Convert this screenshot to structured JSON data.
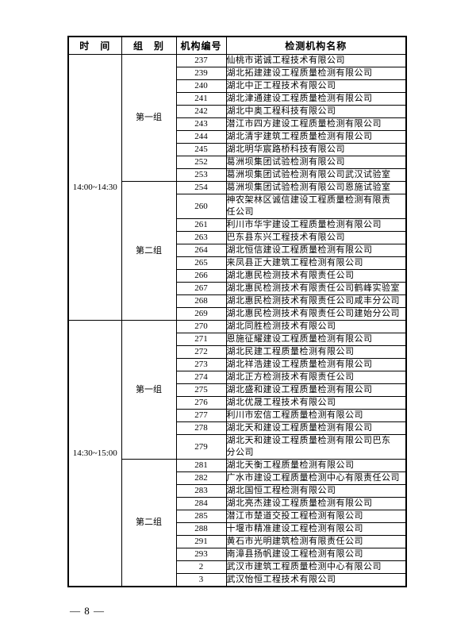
{
  "page": {
    "footer": "— 8 —"
  },
  "table": {
    "headers": [
      "时　间",
      "组　别",
      "机构编号",
      "检测机构名称"
    ],
    "blocks": [
      {
        "time": "14:00~14:30",
        "groups": [
          {
            "label": "第一组",
            "rows": [
              {
                "no": "237",
                "name": "仙桃市诺诚工程技术有限公司"
              },
              {
                "no": "239",
                "name": "湖北拓建建设工程质量检测有限公司"
              },
              {
                "no": "240",
                "name": "湖北中正工程技术有限公司"
              },
              {
                "no": "241",
                "name": "湖北津通建设工程质量检测有限公司"
              },
              {
                "no": "242",
                "name": "湖北中奥工程科技有限公司"
              },
              {
                "no": "243",
                "name": "潜江市四方建设工程质量检测有限公司"
              },
              {
                "no": "244",
                "name": "湖北清宇建筑工程质量检测有限公司"
              },
              {
                "no": "245",
                "name": "湖北明华宸路桥科技有限公司"
              },
              {
                "no": "252",
                "name": "葛洲坝集团试验检测有限公司"
              },
              {
                "no": "253",
                "name": "葛洲坝集团试验检测有限公司武汉试验室"
              }
            ]
          },
          {
            "label": "第二组",
            "rows": [
              {
                "no": "254",
                "name": "葛洲坝集团试验检测有限公司恩施试验室"
              },
              {
                "no": "260",
                "name": "神农架林区诚信建设工程质量检测有限责\n任公司"
              },
              {
                "no": "261",
                "name": "利川市华宇建设工程质量检测有限公司"
              },
              {
                "no": "263",
                "name": "巴东县东兴工程技术有限公司"
              },
              {
                "no": "264",
                "name": "湖北恒信建设工程质量检测有限公司"
              },
              {
                "no": "265",
                "name": "来凤县正大建筑工程检测有限公司"
              },
              {
                "no": "266",
                "name": "湖北惠民检测技术有限责任公司"
              },
              {
                "no": "267",
                "name": "湖北惠民检测技术有限责任公司鹤峰实验室"
              },
              {
                "no": "268",
                "name": "湖北惠民检测技术有限责任公司咸丰分公司"
              },
              {
                "no": "269",
                "name": "湖北惠民检测技术有限责任公司建始分公司"
              }
            ]
          }
        ]
      },
      {
        "time": "14:30~15:00",
        "groups": [
          {
            "label": "第一组",
            "rows": [
              {
                "no": "270",
                "name": "湖北同胜检测技术有限公司"
              },
              {
                "no": "271",
                "name": "恩施征耀建设工程质量检测有限公司"
              },
              {
                "no": "272",
                "name": "湖北民建工程质量检测有限公司"
              },
              {
                "no": "273",
                "name": "湖北祥浩建设工程质量检测有限公司"
              },
              {
                "no": "274",
                "name": "湖北正方检测技术有限责任公司"
              },
              {
                "no": "275",
                "name": "湖北盛和建设工程质量检测有限公司"
              },
              {
                "no": "276",
                "name": "湖北优晟工程技术有限公司"
              },
              {
                "no": "277",
                "name": "利川市宏信工程质量检测有限公司"
              },
              {
                "no": "278",
                "name": "湖北天和建设工程质量检测有限公司"
              },
              {
                "no": "279",
                "name": "湖北天和建设工程质量检测有限公司巴东\n分公司"
              }
            ]
          },
          {
            "label": "第二组",
            "rows": [
              {
                "no": "281",
                "name": "湖北天衡工程质量检测有限公司"
              },
              {
                "no": "282",
                "name": "广水市建设工程质量检测中心有限责任公司"
              },
              {
                "no": "283",
                "name": "湖北国恒工程检测有限公司"
              },
              {
                "no": "284",
                "name": "湖北亮杰建设工程质量检测有限公司"
              },
              {
                "no": "285",
                "name": "潜江市楚道交投工程检测有限公司"
              },
              {
                "no": "288",
                "name": "十堰市精准建设工程检测有限公司"
              },
              {
                "no": "291",
                "name": "黄石市光明建筑检测有限责任公司"
              },
              {
                "no": "293",
                "name": "南漳县扬帆建设工程检测有限公司"
              },
              {
                "no": "2",
                "name": "武汉市建筑工程质量检测中心有限公司"
              },
              {
                "no": "3",
                "name": "武汉怡恒工程技术有限公司"
              }
            ]
          }
        ]
      }
    ]
  }
}
